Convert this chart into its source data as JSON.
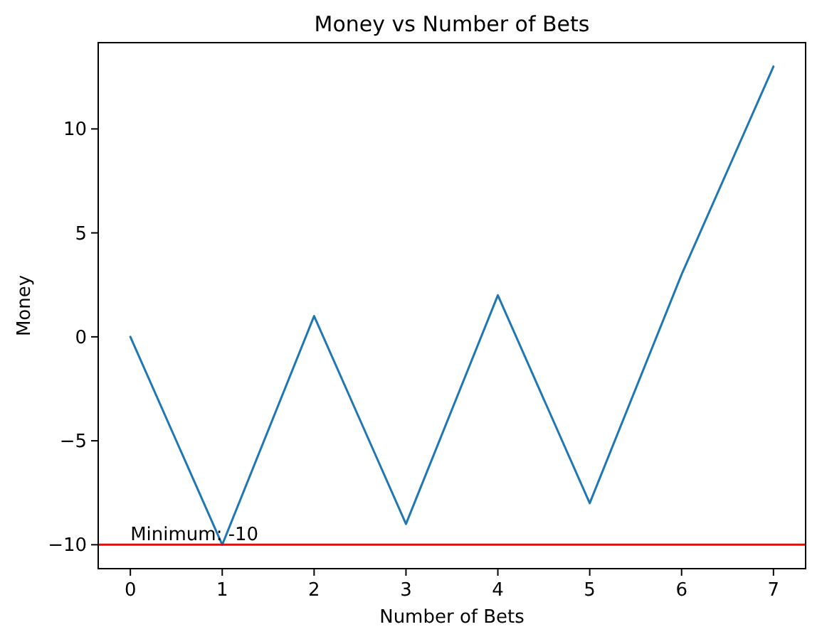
{
  "chart_data": {
    "type": "line",
    "title": "Money vs Number of Bets",
    "xlabel": "Number of Bets",
    "ylabel": "Money",
    "x": [
      0,
      1,
      2,
      3,
      4,
      5,
      6,
      7
    ],
    "series": [
      {
        "color": "#1f77b4",
        "values": [
          0,
          -10,
          1,
          -9,
          2,
          -8,
          3,
          13
        ]
      }
    ],
    "xlim": [
      -0.35,
      7.35
    ],
    "xticks": [
      0,
      1,
      2,
      3,
      4,
      5,
      6,
      7
    ],
    "ylim": [
      -11.15,
      14.15
    ],
    "yticks": [
      {
        "value": -10,
        "label": "−10"
      },
      {
        "value": -5,
        "label": "−5"
      },
      0,
      5,
      10
    ],
    "ref_lines": [
      {
        "axis": "y",
        "value": -10,
        "color": "#ff0000"
      }
    ],
    "annotations": [
      {
        "text": "Minimum: -10",
        "x": 0,
        "y": -10
      }
    ],
    "marker": "none",
    "line_style": "solid"
  }
}
